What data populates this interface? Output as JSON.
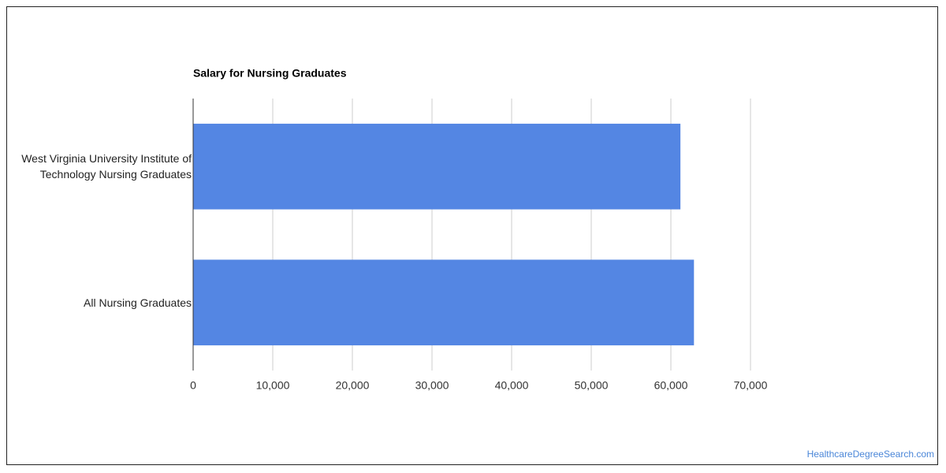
{
  "chart_data": {
    "type": "hbar",
    "title": "Salary for Nursing Graduates",
    "categories": [
      "West Virginia University Institute of Technology Nursing Graduates",
      "All Nursing Graduates"
    ],
    "values": [
      61200,
      62900
    ],
    "color": "#5486e3",
    "xlim": [
      0,
      70000
    ],
    "xticks": [
      0,
      {
        "value": 10000,
        "label": "10,000"
      },
      {
        "value": 20000,
        "label": "20,000"
      },
      {
        "value": 30000,
        "label": "30,000"
      },
      {
        "value": 40000,
        "label": "40,000"
      },
      {
        "value": 50000,
        "label": "50,000"
      },
      {
        "value": 60000,
        "label": "60,000"
      },
      {
        "value": 70000,
        "label": "70,000"
      }
    ],
    "grid": true,
    "watermark": "HealthcareDegreeSearch.com"
  }
}
